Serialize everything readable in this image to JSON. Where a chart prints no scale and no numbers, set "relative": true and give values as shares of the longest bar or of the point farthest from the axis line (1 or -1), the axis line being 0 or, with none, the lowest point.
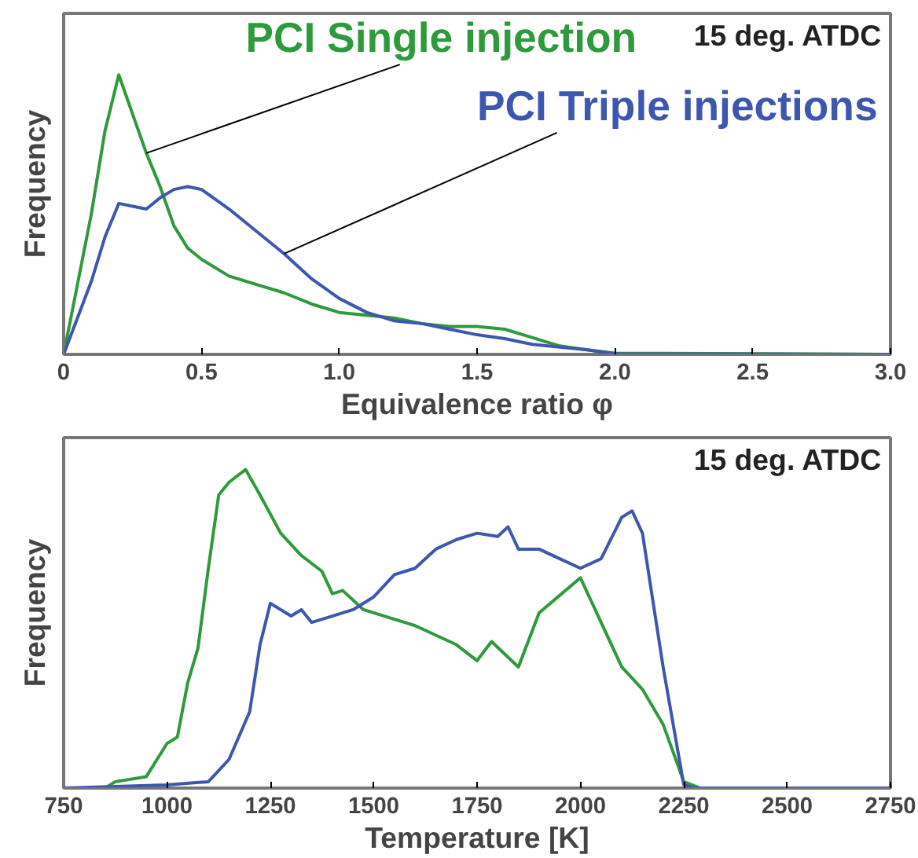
{
  "chart_data": [
    {
      "type": "line",
      "xlabel": "Equivalence ratio φ",
      "ylabel": "Frequency",
      "relative": true,
      "tick_labels": "x",
      "xlim": [
        0,
        3.0
      ],
      "xticks": [
        {
          "value": 0,
          "label": "0"
        },
        0.5,
        {
          "value": 1,
          "label": "1.0"
        },
        1.5,
        {
          "value": 2,
          "label": "2.0"
        },
        2.5,
        {
          "value": 3,
          "label": "3.0"
        }
      ],
      "annotations": [
        "15 deg. ATDC"
      ],
      "series": [
        {
          "name": "PCI Single injection",
          "color": "#2e9a3c",
          "x": [
            0,
            0.05,
            0.1,
            0.15,
            0.2,
            0.25,
            0.3,
            0.35,
            0.4,
            0.45,
            0.5,
            0.6,
            0.7,
            0.8,
            0.9,
            1.0,
            1.1,
            1.2,
            1.3,
            1.4,
            1.5,
            1.6,
            1.7,
            1.8,
            1.9,
            2.0,
            3.0
          ],
          "values": [
            0,
            0.25,
            0.5,
            0.8,
            1.0,
            0.86,
            0.72,
            0.6,
            0.46,
            0.38,
            0.34,
            0.28,
            0.25,
            0.22,
            0.18,
            0.15,
            0.14,
            0.13,
            0.11,
            0.1,
            0.1,
            0.09,
            0.06,
            0.03,
            0.016,
            0.004,
            0
          ]
        },
        {
          "name": "PCI Triple injections",
          "color": "#3d57b0",
          "x": [
            0,
            0.1,
            0.15,
            0.2,
            0.25,
            0.3,
            0.35,
            0.4,
            0.45,
            0.5,
            0.6,
            0.7,
            0.8,
            0.9,
            1.0,
            1.1,
            1.2,
            1.3,
            1.4,
            1.5,
            1.6,
            1.7,
            1.8,
            1.9,
            2.0,
            3.0
          ],
          "values": [
            0,
            0.26,
            0.42,
            0.54,
            0.53,
            0.52,
            0.56,
            0.59,
            0.6,
            0.59,
            0.52,
            0.44,
            0.36,
            0.27,
            0.2,
            0.15,
            0.12,
            0.11,
            0.09,
            0.07,
            0.056,
            0.036,
            0.026,
            0.016,
            0.002,
            0
          ]
        }
      ]
    },
    {
      "type": "line",
      "xlabel": "Temperature [K]",
      "ylabel": "Frequency",
      "relative": true,
      "tick_labels": "x",
      "xlim": [
        750,
        2750
      ],
      "xticks": [
        750,
        1000,
        1250,
        1500,
        1750,
        2000,
        2250,
        2500,
        2750
      ],
      "annotations": [
        "15 deg. ATDC"
      ],
      "series": [
        {
          "color": "#2e9a3c",
          "x": [
            750,
            850,
            875,
            950,
            1000,
            1025,
            1050,
            1075,
            1100,
            1125,
            1150,
            1190,
            1225,
            1275,
            1325,
            1375,
            1400,
            1425,
            1475,
            1550,
            1600,
            1700,
            1750,
            1785,
            1850,
            1900,
            2000,
            2100,
            2150,
            2200,
            2250,
            2290,
            2750
          ],
          "values": [
            0,
            0,
            0.02,
            0.036,
            0.14,
            0.16,
            0.33,
            0.44,
            0.69,
            0.92,
            0.96,
            1.0,
            0.92,
            0.8,
            0.73,
            0.68,
            0.61,
            0.62,
            0.56,
            0.53,
            0.51,
            0.45,
            0.4,
            0.46,
            0.38,
            0.55,
            0.66,
            0.38,
            0.31,
            0.2,
            0.02,
            0,
            0
          ]
        },
        {
          "color": "#3d57b0",
          "x": [
            750,
            1000,
            1100,
            1150,
            1200,
            1225,
            1250,
            1300,
            1325,
            1350,
            1400,
            1450,
            1500,
            1550,
            1600,
            1650,
            1700,
            1750,
            1800,
            1825,
            1850,
            1900,
            1950,
            2000,
            2050,
            2100,
            2125,
            2150,
            2200,
            2250,
            2275,
            2750
          ],
          "values": [
            0,
            0.01,
            0.02,
            0.09,
            0.24,
            0.45,
            0.58,
            0.54,
            0.56,
            0.52,
            0.54,
            0.56,
            0.6,
            0.67,
            0.69,
            0.75,
            0.78,
            0.8,
            0.79,
            0.82,
            0.75,
            0.75,
            0.72,
            0.69,
            0.72,
            0.85,
            0.87,
            0.8,
            0.38,
            0.01,
            0,
            0
          ]
        }
      ]
    }
  ]
}
